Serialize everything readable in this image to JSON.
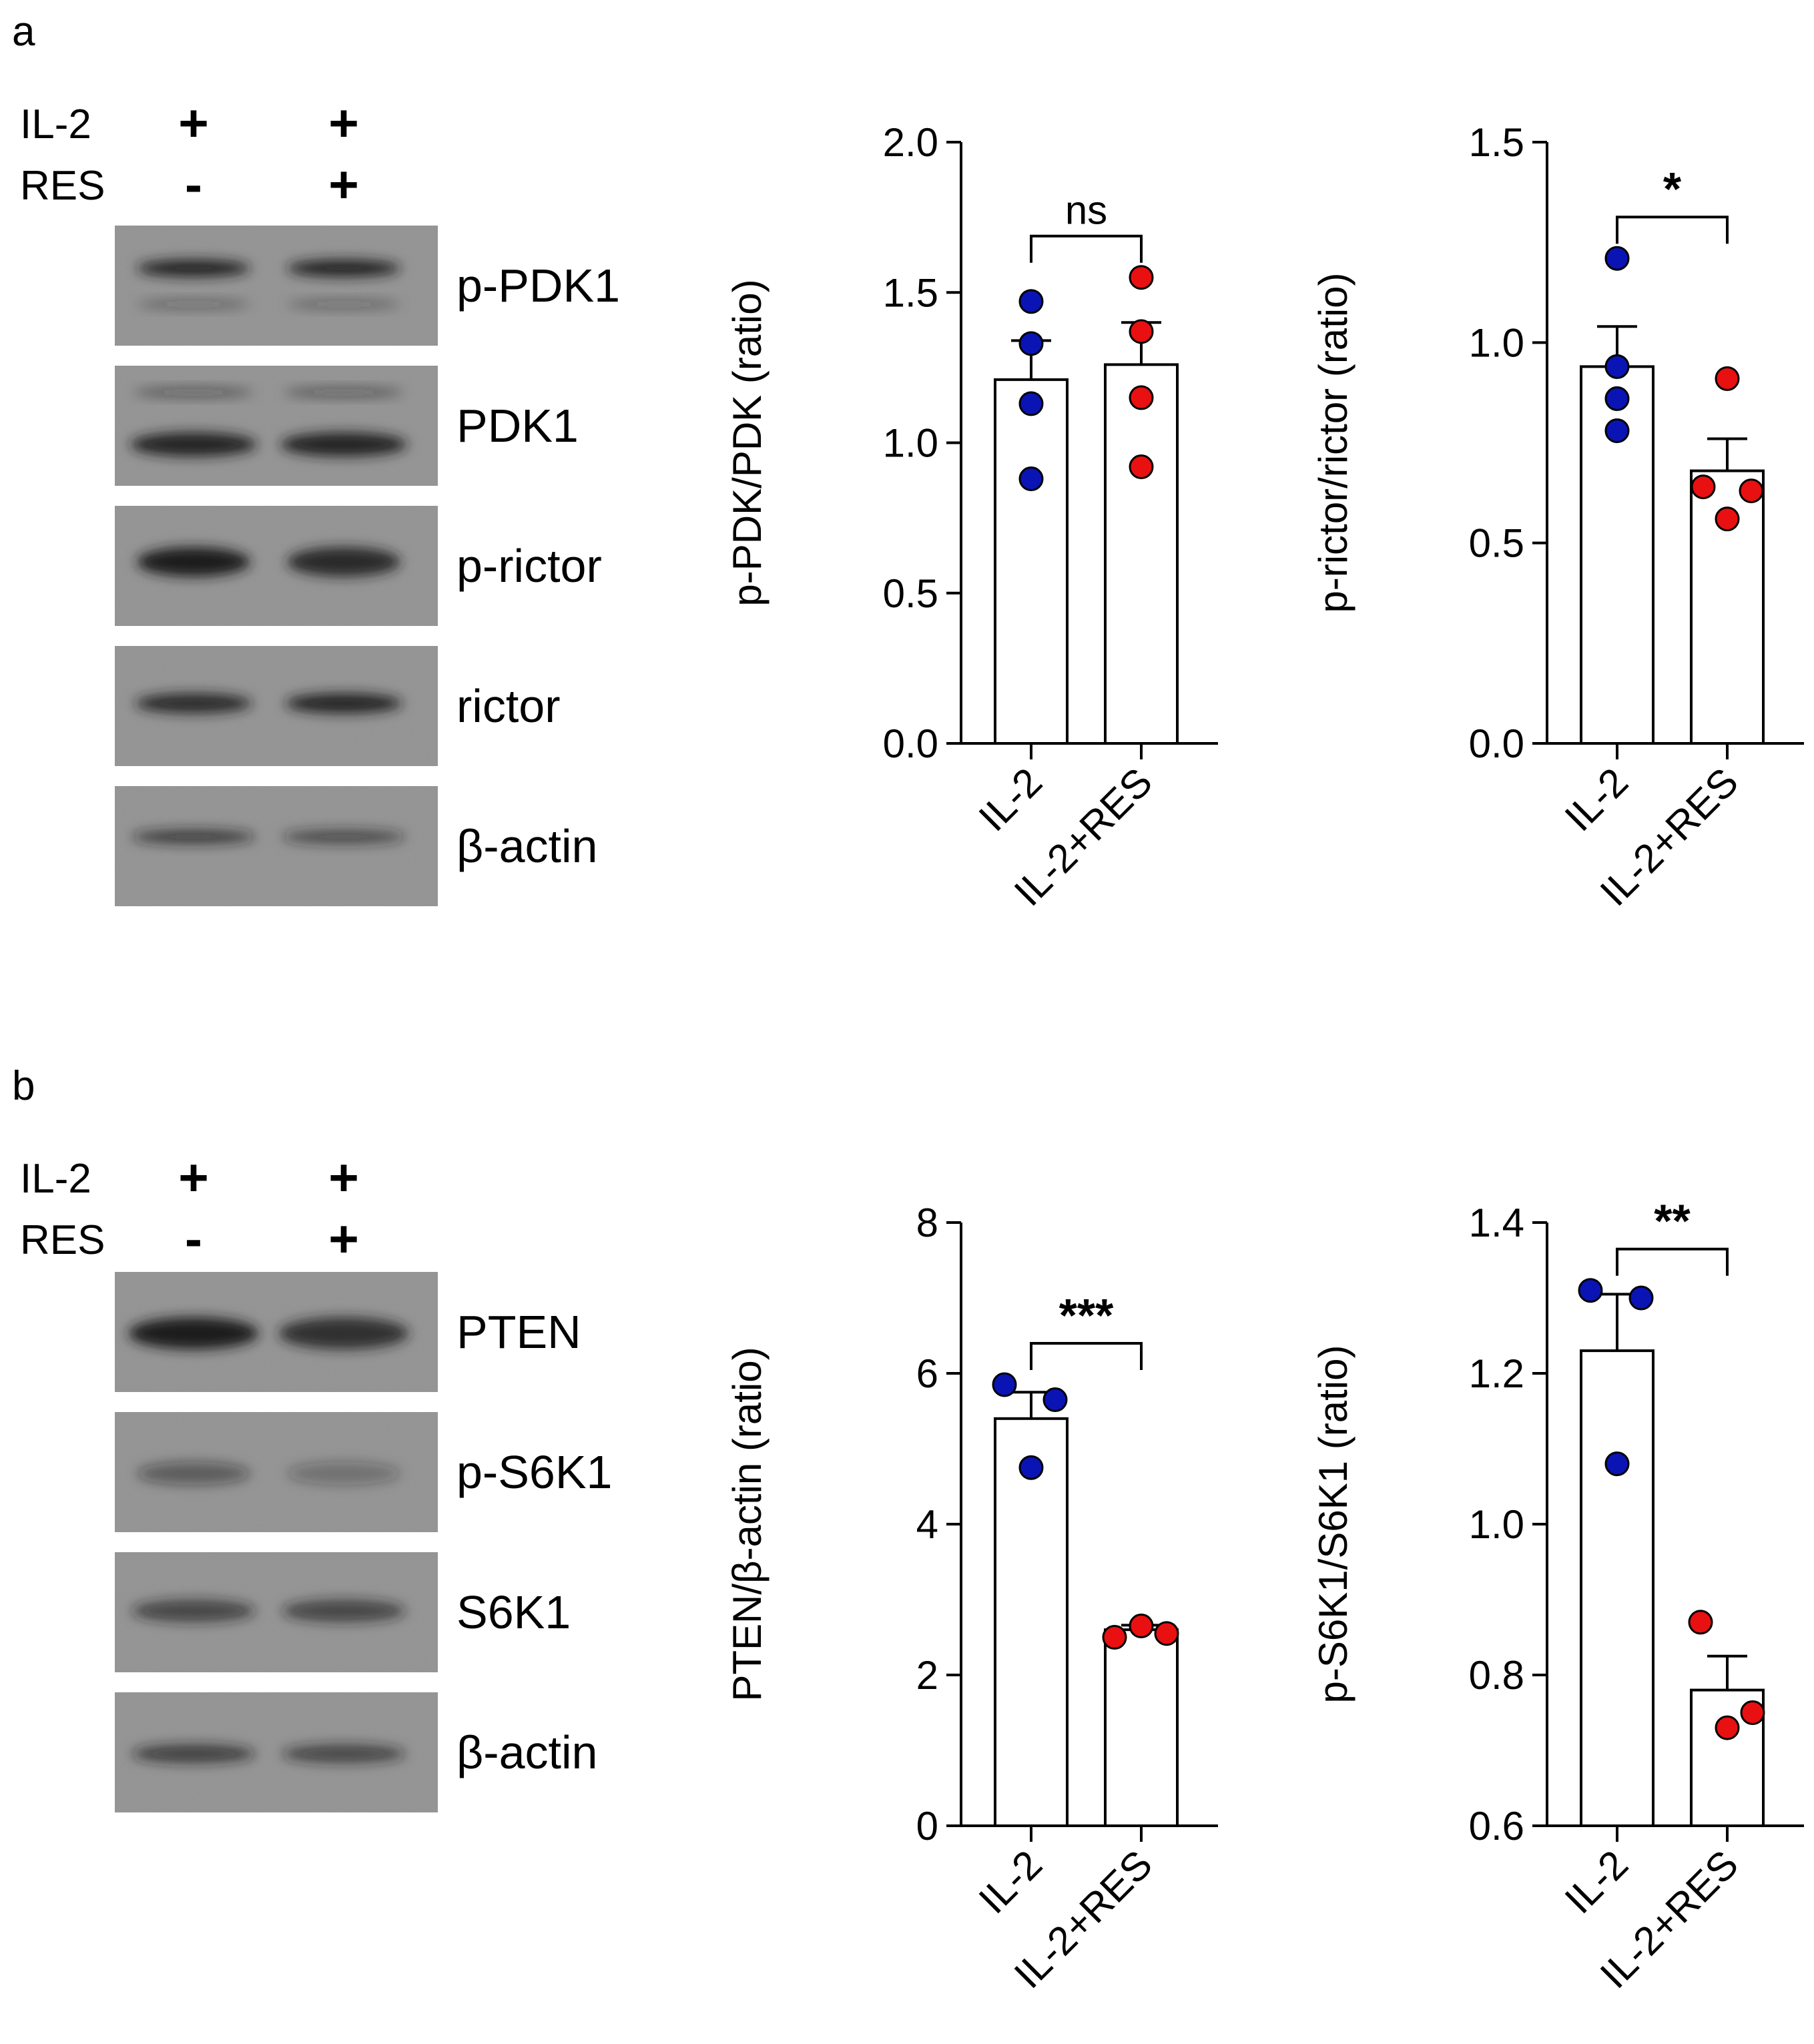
{
  "panels": [
    {
      "letter": "a",
      "treatments": [
        {
          "name": "IL-2",
          "lanes": [
            "+",
            "+"
          ]
        },
        {
          "name": "RES",
          "lanes": [
            "-",
            "+"
          ]
        }
      ],
      "blots": [
        "p-PDK1",
        "PDK1",
        "p-rictor",
        "rictor",
        "β-actin"
      ]
    },
    {
      "letter": "b",
      "treatments": [
        {
          "name": "IL-2",
          "lanes": [
            "+",
            "+"
          ]
        },
        {
          "name": "RES",
          "lanes": [
            "-",
            "+"
          ]
        }
      ],
      "blots": [
        "PTEN",
        "p-S6K1",
        "S6K1",
        "β-actin"
      ]
    }
  ],
  "colors": {
    "il2_points": "#0a14b4",
    "res_points": "#e81010",
    "blot_bg": "#8f8f8f",
    "blot_band": "#1c1c1c"
  },
  "chart_data": [
    {
      "type": "bar",
      "ylabel": "p-PDK/PDK (ratio)",
      "categories": [
        "IL-2",
        "IL-2+RES"
      ],
      "ylim": [
        0,
        2.0
      ],
      "yticks": [
        "0.0",
        "0.5",
        "1.0",
        "1.5",
        "2.0"
      ],
      "values": [
        1.21,
        1.26
      ],
      "errors": [
        0.13,
        0.14
      ],
      "points": [
        [
          1.47,
          1.33,
          1.13,
          0.88
        ],
        [
          1.55,
          1.37,
          1.15,
          0.92
        ]
      ],
      "significance": "ns"
    },
    {
      "type": "bar",
      "ylabel": "p-rictor/rictor (ratio)",
      "categories": [
        "IL-2",
        "IL-2+RES"
      ],
      "ylim": [
        0,
        1.5
      ],
      "yticks": [
        "0.0",
        "0.5",
        "1.0",
        "1.5"
      ],
      "values": [
        0.94,
        0.68
      ],
      "errors": [
        0.1,
        0.08
      ],
      "points": [
        [
          1.21,
          0.94,
          0.86,
          0.78
        ],
        [
          0.91,
          0.64,
          0.63,
          0.56
        ]
      ],
      "significance": "*"
    },
    {
      "type": "bar",
      "ylabel": "PTEN/β-actin (ratio)",
      "categories": [
        "IL-2",
        "IL-2+RES"
      ],
      "ylim": [
        0,
        8
      ],
      "yticks": [
        "0",
        "2",
        "4",
        "6",
        "8"
      ],
      "values": [
        5.4,
        2.6
      ],
      "errors": [
        0.35,
        0.06
      ],
      "points": [
        [
          5.85,
          5.65,
          4.75
        ],
        [
          2.5,
          2.65,
          2.55
        ]
      ],
      "significance": "***"
    },
    {
      "type": "bar",
      "ylabel": "p-S6K1/S6K1 (ratio)",
      "categories": [
        "IL-2",
        "IL-2+RES"
      ],
      "ylim": [
        0.6,
        1.4
      ],
      "yticks": [
        "0.6",
        "0.8",
        "1.0",
        "1.2",
        "1.4"
      ],
      "values": [
        1.23,
        0.78
      ],
      "errors": [
        0.075,
        0.045
      ],
      "points": [
        [
          1.31,
          1.3,
          1.08
        ],
        [
          0.87,
          0.73,
          0.75
        ]
      ],
      "significance": "**"
    }
  ]
}
